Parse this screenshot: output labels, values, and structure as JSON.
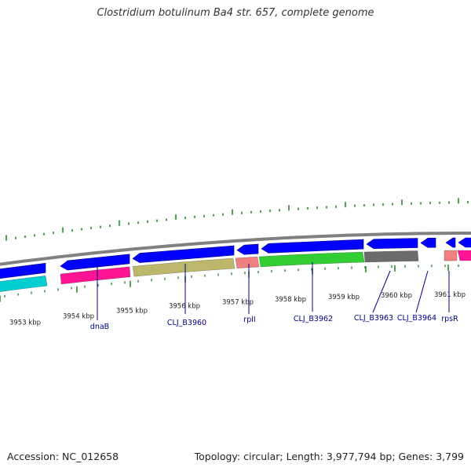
{
  "title": "Clostridium botulinum Ba4 str. 657, complete genome",
  "footer": {
    "accession": "Accession: NC_012658",
    "topology": "Topology: circular; Length: 3,977,794 bp; Genes: 3,799"
  },
  "map": {
    "kbp_labels": [
      "3953 kbp",
      "3954 kbp",
      "3955 kbp",
      "3956 kbp",
      "3957 kbp",
      "3958 kbp",
      "3959 kbp",
      "3960 kbp",
      "3961 kbp"
    ],
    "genes": [
      {
        "label": "dnaB",
        "strand": "forward",
        "color": "#ff1493"
      },
      {
        "label": "CLJ_B3960",
        "strand": "forward",
        "color": "#bdb76b"
      },
      {
        "label": "rplI",
        "strand": "forward",
        "color": "#f08080"
      },
      {
        "label": "CLJ_B3962",
        "strand": "forward",
        "color": "#32cd32"
      },
      {
        "label": "CLJ_B3963",
        "strand": "forward",
        "color": "#6b6b6b"
      },
      {
        "label": "CLJ_B3964",
        "strand": "reverse",
        "color": "#0000ff"
      },
      {
        "label": "rpsR",
        "strand": "forward",
        "color": "#f08080"
      }
    ],
    "colors": {
      "cds_reverse": "#0000ff",
      "backbone": "#808080",
      "gc_ticks": "#228b22",
      "gene_label": "#00008b",
      "cyan_feature": "#00ced1",
      "magenta_feature": "#ff1493"
    }
  }
}
